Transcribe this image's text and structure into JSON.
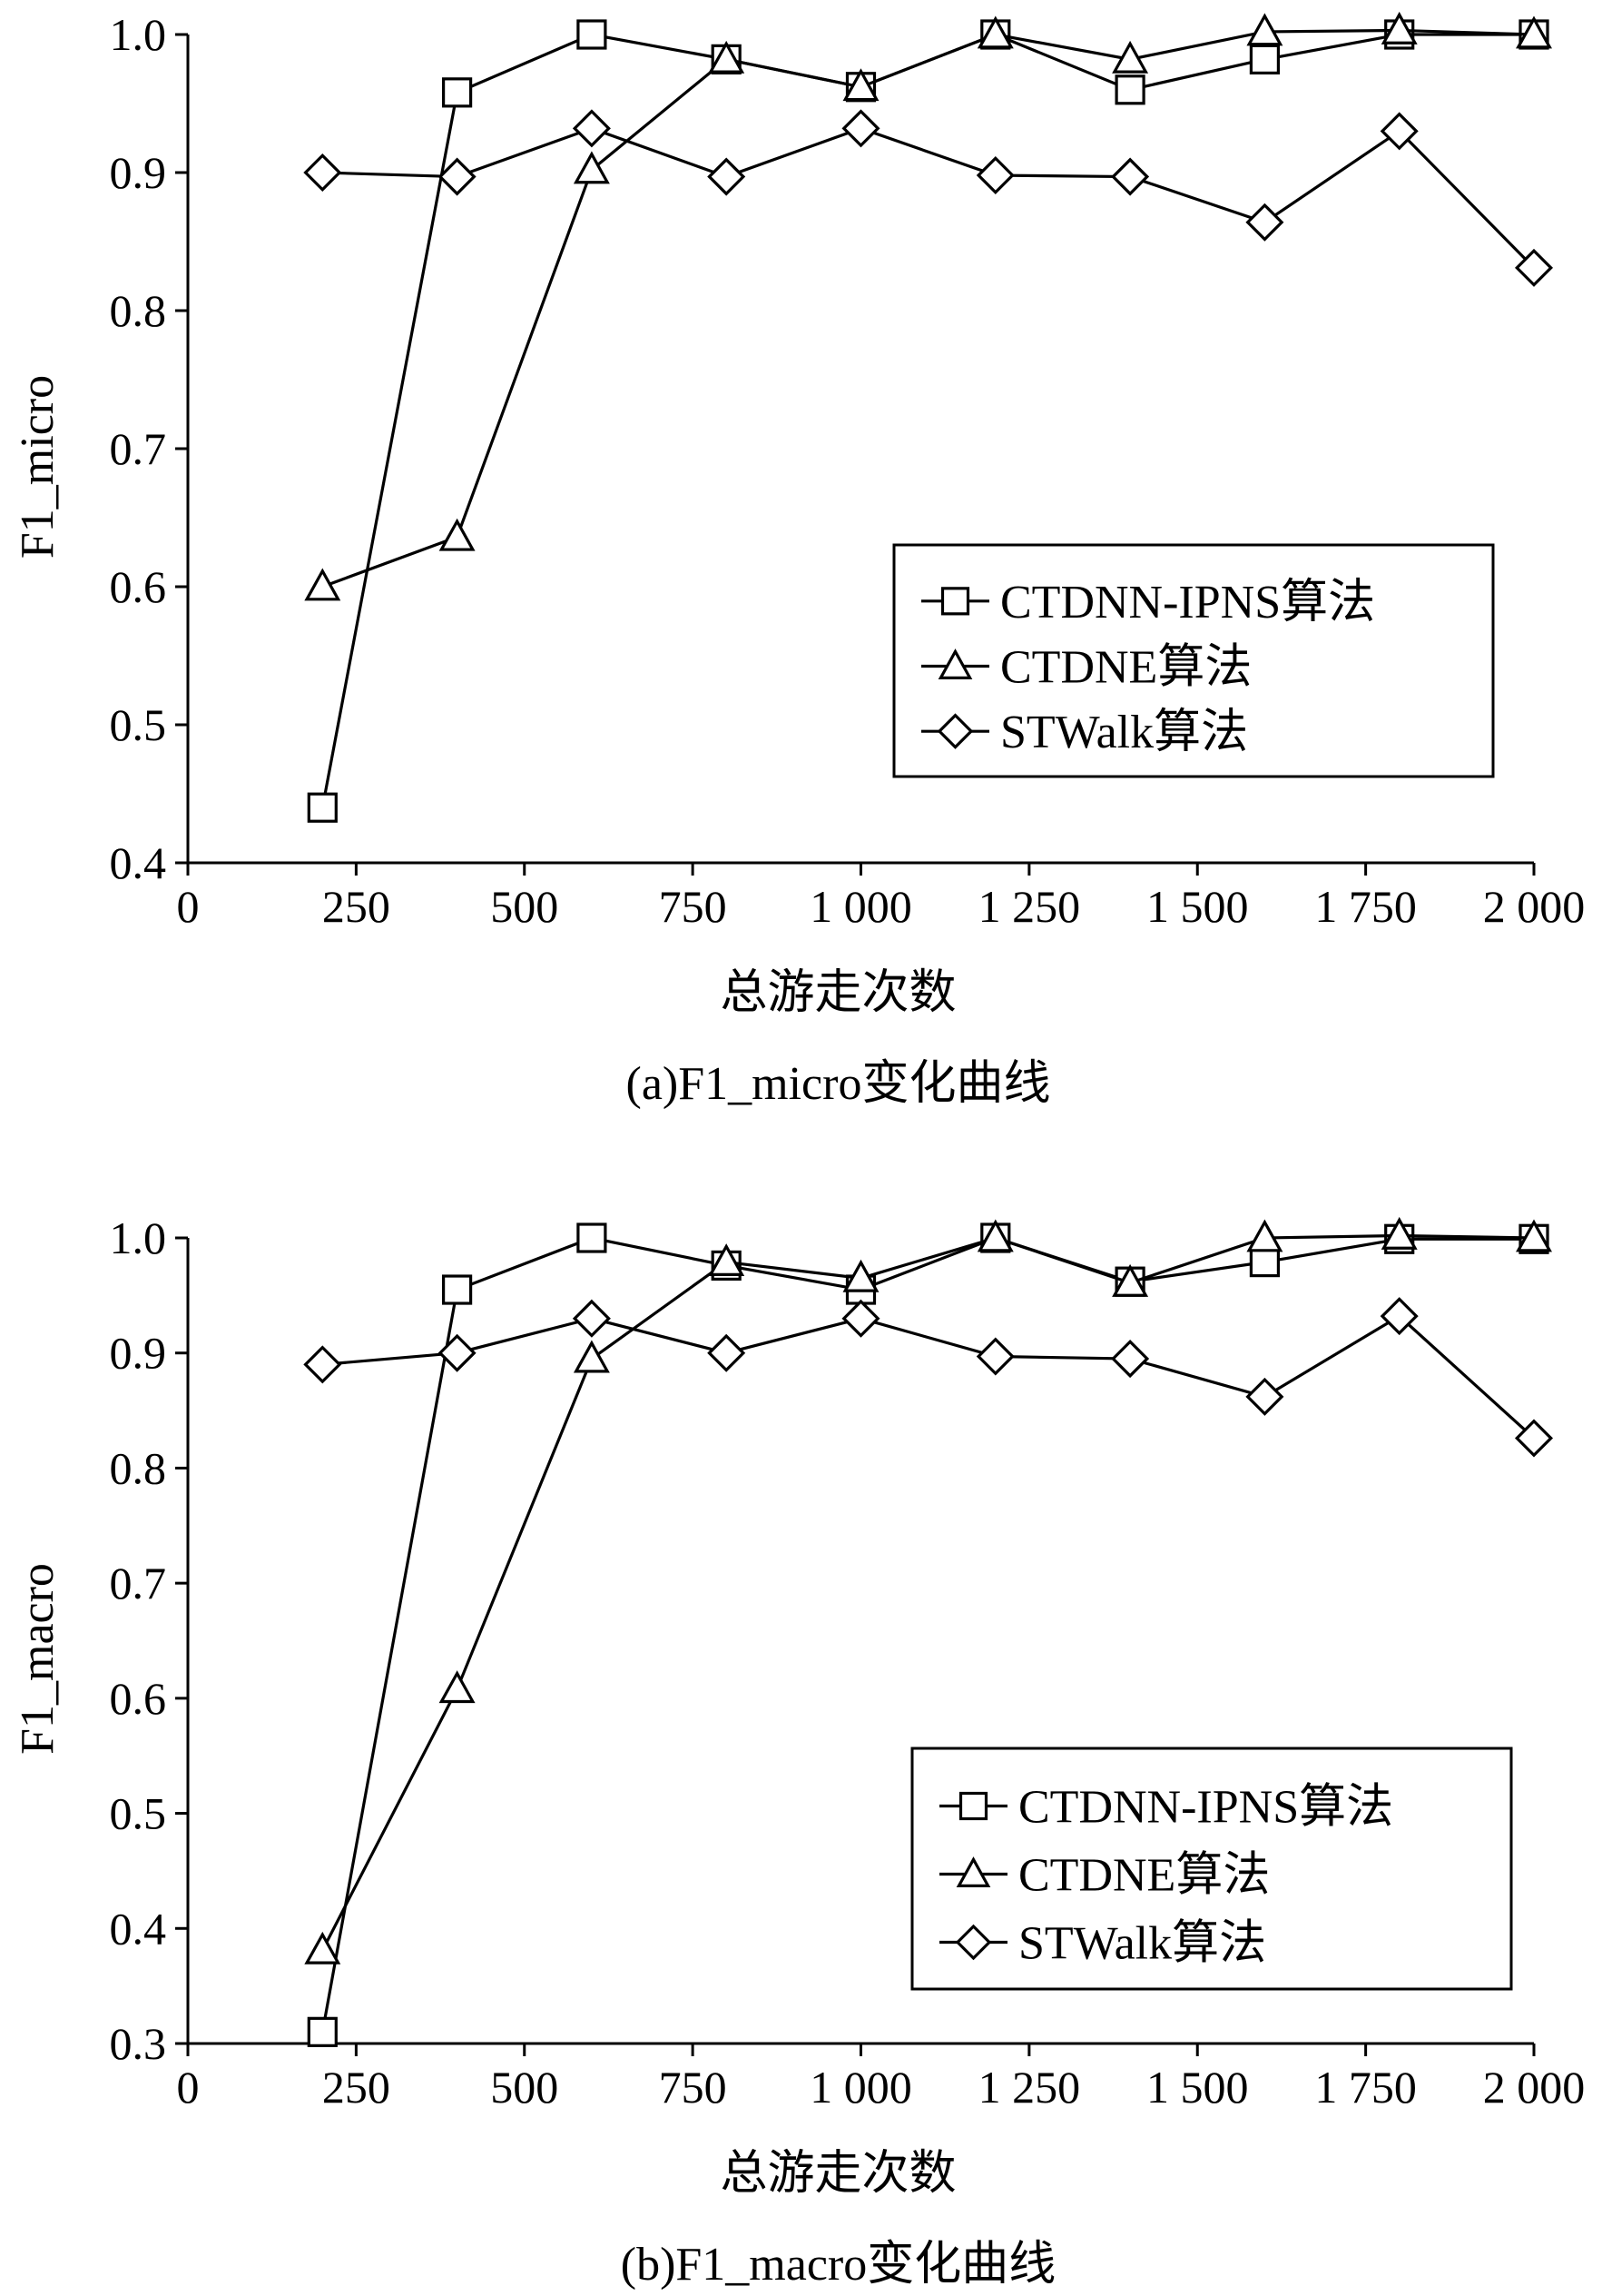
{
  "chart_data": [
    {
      "type": "line",
      "caption": "(a)F1_micro变化曲线",
      "xlabel": "总游走次数",
      "ylabel": "F1_micro",
      "xlim": [
        0,
        2000
      ],
      "ylim": [
        0.4,
        1.0
      ],
      "x_ticks": [
        0,
        250,
        500,
        750,
        1000,
        1250,
        1500,
        1750,
        2000
      ],
      "x_tick_labels": [
        "0",
        "250",
        "500",
        "750",
        "1 000",
        "1 250",
        "1 500",
        "1 750",
        "2 000"
      ],
      "y_ticks": [
        0.4,
        0.5,
        0.6,
        0.7,
        0.8,
        0.9,
        1.0
      ],
      "y_tick_labels": [
        "0.4",
        "0.5",
        "0.6",
        "0.7",
        "0.8",
        "0.9",
        "1.0"
      ],
      "x": [
        200,
        400,
        600,
        800,
        1000,
        1200,
        1400,
        1600,
        1800,
        2000
      ],
      "legend_position": "center-right",
      "grid": false,
      "series": [
        {
          "name": "CTDNN-IPNS算法",
          "marker": "square",
          "values": [
            0.44,
            0.958,
            1.0,
            0.982,
            0.962,
            1.0,
            0.96,
            0.982,
            1.0,
            1.0
          ]
        },
        {
          "name": "CTDNE算法",
          "marker": "triangle",
          "values": [
            0.6,
            0.636,
            0.902,
            0.982,
            0.962,
            1.0,
            0.982,
            1.002,
            1.003,
            1.0
          ]
        },
        {
          "name": "STWalk算法",
          "marker": "diamond",
          "values": [
            0.9,
            0.897,
            0.932,
            0.897,
            0.932,
            0.898,
            0.897,
            0.864,
            0.93,
            0.831
          ]
        }
      ]
    },
    {
      "type": "line",
      "caption": "(b)F1_macro变化曲线",
      "xlabel": "总游走次数",
      "ylabel": "F1_macro",
      "xlim": [
        0,
        2000
      ],
      "ylim": [
        0.3,
        1.0
      ],
      "x_ticks": [
        0,
        250,
        500,
        750,
        1000,
        1250,
        1500,
        1750,
        2000
      ],
      "x_tick_labels": [
        "0",
        "250",
        "500",
        "750",
        "1 000",
        "1 250",
        "1 500",
        "1 750",
        "2 000"
      ],
      "y_ticks": [
        0.3,
        0.4,
        0.5,
        0.6,
        0.7,
        0.8,
        0.9,
        1.0
      ],
      "y_tick_labels": [
        "0.3",
        "0.4",
        "0.5",
        "0.6",
        "0.7",
        "0.8",
        "0.9",
        "1.0"
      ],
      "x": [
        200,
        400,
        600,
        800,
        1000,
        1200,
        1400,
        1600,
        1800,
        2000
      ],
      "legend_position": "center-right",
      "grid": false,
      "series": [
        {
          "name": "CTDNN-IPNS算法",
          "marker": "square",
          "values": [
            0.31,
            0.955,
            1.0,
            0.976,
            0.955,
            1.0,
            0.962,
            0.979,
            0.999,
            0.999
          ]
        },
        {
          "name": "CTDNE算法",
          "marker": "triangle",
          "values": [
            0.381,
            0.608,
            0.895,
            0.979,
            0.965,
            1.0,
            0.961,
            1.0,
            1.002,
            1.0
          ]
        },
        {
          "name": "STWalk算法",
          "marker": "diamond",
          "values": [
            0.89,
            0.9,
            0.93,
            0.9,
            0.93,
            0.897,
            0.895,
            0.862,
            0.932,
            0.826
          ]
        }
      ]
    }
  ]
}
